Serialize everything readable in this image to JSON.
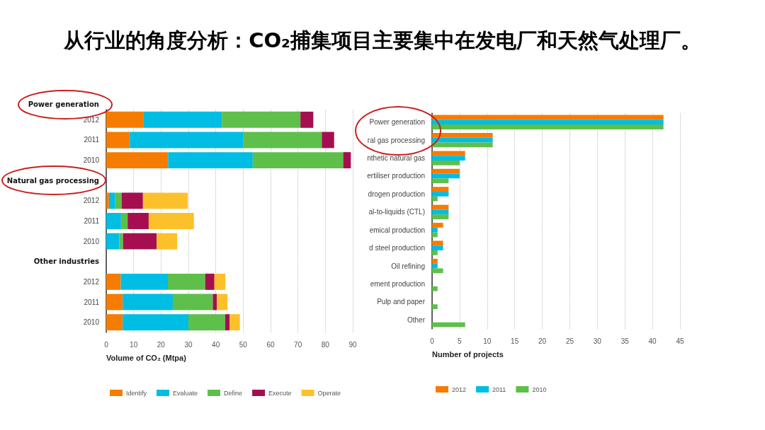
{
  "chart_data": [
    {
      "type": "bar",
      "orientation": "horizontal",
      "stacked": true,
      "title": "从行业的角度分析：CO₂捕集项目主要集中在发电厂和天然气处理厂。",
      "categories": [
        "2012",
        "2011",
        "2010",
        "2012",
        "2011",
        "2010",
        "2012",
        "2011",
        "2010"
      ],
      "series": [
        {
          "name": "Identify",
          "color": "#f57c00",
          "values": [
            13.5,
            8.6,
            22.6,
            1.0,
            0,
            0,
            5.3,
            6.0,
            6.0
          ]
        },
        {
          "name": "Evaluate",
          "color": "#00bde3",
          "values": [
            28.7,
            41.5,
            30.9,
            2.3,
            5.4,
            4.8,
            17.2,
            18.3,
            24.0
          ]
        },
        {
          "name": "Define",
          "color": "#5ec04a",
          "values": [
            28.7,
            28.6,
            33.0,
            2.3,
            2.4,
            1.3,
            13.6,
            14.6,
            13.4
          ]
        },
        {
          "name": "Execute",
          "color": "#a50f4f",
          "values": [
            4.7,
            4.5,
            2.8,
            7.8,
            7.7,
            12.3,
            3.4,
            1.5,
            1.6
          ]
        },
        {
          "name": "Operate",
          "color": "#fcc12a",
          "values": [
            0,
            0,
            0,
            16.4,
            16.5,
            7.5,
            4.0,
            3.9,
            3.8
          ]
        }
      ],
      "annotations": [
        "Power generation",
        "Natural gas processing",
        "Other industries"
      ],
      "xlabel": "Volume of CO₂ (Mtpa)",
      "xlim": [
        0,
        90
      ],
      "xticks": [
        0,
        10,
        20,
        30,
        40,
        50,
        60,
        70,
        80,
        90
      ],
      "grid": "x",
      "legend": "bottom"
    },
    {
      "type": "bar",
      "orientation": "horizontal",
      "categories": [
        "Power generation",
        "ral gas processing",
        "nthetic natural gas",
        "ertiliser production",
        "drogen production",
        "al-to-liquids (CTL)",
        "emical production",
        "d steel production",
        "Oil refining",
        "ement production",
        "Pulp and paper",
        "Other"
      ],
      "series": [
        {
          "name": "2012",
          "color": "#f57c00",
          "values": [
            42,
            11,
            6,
            5,
            3,
            3,
            2,
            2,
            1,
            0,
            0,
            0
          ]
        },
        {
          "name": "2011",
          "color": "#00bde3",
          "values": [
            42,
            11,
            6,
            5,
            3,
            3,
            1,
            2,
            1,
            0,
            0,
            0
          ]
        },
        {
          "name": "2010",
          "color": "#5ec04a",
          "values": [
            42,
            11,
            5,
            3,
            1,
            3,
            1,
            1,
            2,
            1,
            1,
            6
          ]
        }
      ],
      "xlabel": "Number of projects",
      "xlim": [
        0,
        45
      ],
      "xticks": [
        0,
        5,
        10,
        15,
        20,
        25,
        30,
        35,
        40,
        45
      ],
      "grid": "x",
      "legend": "bottom"
    }
  ]
}
